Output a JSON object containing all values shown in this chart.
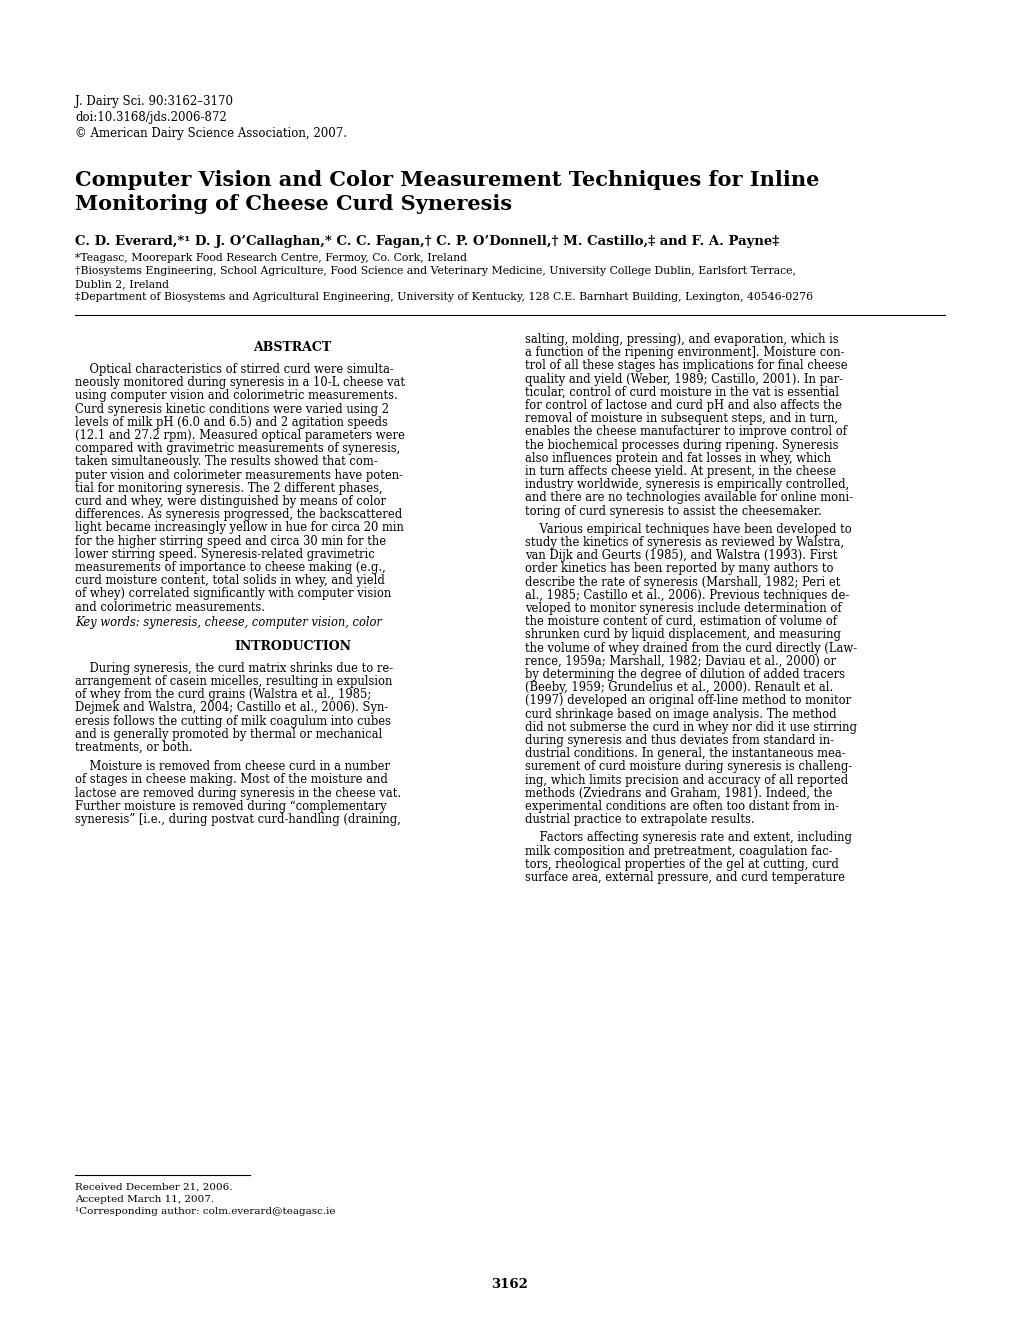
{
  "bg_color": "#ffffff",
  "journal_info": "J. Dairy Sci. 90:3162–3170",
  "doi": "doi:10.3168/jds.2006-872",
  "copyright": "© American Dairy Science Association, 2007.",
  "title_line1": "Computer Vision and Color Measurement Techniques for Inline",
  "title_line2": "Monitoring of Cheese Curd Syneresis",
  "authors": "C. D. Everard,*¹ D. J. O’Callaghan,* C. C. Fagan,† C. P. O’Donnell,† M. Castillo,‡ and F. A. Payne‡",
  "affil1": "*Teagasc, Moorepark Food Research Centre, Fermoy, Co. Cork, Ireland",
  "affil2": "†Biosystems Engineering, School Agriculture, Food Science and Veterinary Medicine, University College Dublin, Earlsfort Terrace,",
  "affil2b": "Dublin 2, Ireland",
  "affil3": "‡Department of Biosystems and Agricultural Engineering, University of Kentucky, 128 C.E. Barnhart Building, Lexington, 40546-0276",
  "abstract_title": "ABSTRACT",
  "keywords": "Key words: syneresis, cheese, computer vision, color",
  "intro_title": "INTRODUCTION",
  "footnote_received": "Received December 21, 2006.",
  "footnote_accepted": "Accepted March 11, 2007.",
  "footnote_corresponding": "¹Corresponding author: colm.everard@teagasc.ie",
  "page_number": "3162",
  "abstract_lines": [
    "    Optical characteristics of stirred curd were simulta-",
    "neously monitored during syneresis in a 10-L cheese vat",
    "using computer vision and colorimetric measurements.",
    "Curd syneresis kinetic conditions were varied using 2",
    "levels of milk pH (6.0 and 6.5) and 2 agitation speeds",
    "(12.1 and 27.2 rpm). Measured optical parameters were",
    "compared with gravimetric measurements of syneresis,",
    "taken simultaneously. The results showed that com-",
    "puter vision and colorimeter measurements have poten-",
    "tial for monitoring syneresis. The 2 different phases,",
    "curd and whey, were distinguished by means of color",
    "differences. As syneresis progressed, the backscattered",
    "light became increasingly yellow in hue for circa 20 min",
    "for the higher stirring speed and circa 30 min for the",
    "lower stirring speed. Syneresis-related gravimetric",
    "measurements of importance to cheese making (e.g.,",
    "curd moisture content, total solids in whey, and yield",
    "of whey) correlated significantly with computer vision",
    "and colorimetric measurements."
  ],
  "intro_p1_lines": [
    "    During syneresis, the curd matrix shrinks due to re-",
    "arrangement of casein micelles, resulting in expulsion",
    "of whey from the curd grains (Walstra et al., 1985;",
    "Dejmek and Walstra, 2004; Castillo et al., 2006). Syn-",
    "eresis follows the cutting of milk coagulum into cubes",
    "and is generally promoted by thermal or mechanical",
    "treatments, or both."
  ],
  "intro_p2_lines": [
    "    Moisture is removed from cheese curd in a number",
    "of stages in cheese making. Most of the moisture and",
    "lactose are removed during syneresis in the cheese vat.",
    "Further moisture is removed during “complementary",
    "syneresis” [i.e., during postvat curd-handling (draining,"
  ],
  "rc1_lines": [
    "salting, molding, pressing), and evaporation, which is",
    "a function of the ripening environment]. Moisture con-",
    "trol of all these stages has implications for final cheese",
    "quality and yield (Weber, 1989; Castillo, 2001). In par-",
    "ticular, control of curd moisture in the vat is essential",
    "for control of lactose and curd pH and also affects the",
    "removal of moisture in subsequent steps, and in turn,",
    "enables the cheese manufacturer to improve control of",
    "the biochemical processes during ripening. Syneresis",
    "also influences protein and fat losses in whey, which",
    "in turn affects cheese yield. At present, in the cheese",
    "industry worldwide, syneresis is empirically controlled,",
    "and there are no technologies available for online moni-",
    "toring of curd syneresis to assist the cheesemaker."
  ],
  "rc2_lines": [
    "    Various empirical techniques have been developed to",
    "study the kinetics of syneresis as reviewed by Walstra,",
    "van Dijk and Geurts (1985), and Walstra (1993). First",
    "order kinetics has been reported by many authors to",
    "describe the rate of syneresis (Marshall, 1982; Peri et",
    "al., 1985; Castillo et al., 2006). Previous techniques de-",
    "veloped to monitor syneresis include determination of",
    "the moisture content of curd, estimation of volume of",
    "shrunken curd by liquid displacement, and measuring",
    "the volume of whey drained from the curd directly (Law-",
    "rence, 1959a; Marshall, 1982; Daviau et al., 2000) or",
    "by determining the degree of dilution of added tracers",
    "(Beeby, 1959; Grundelius et al., 2000). Renault et al.",
    "(1997) developed an original off-line method to monitor",
    "curd shrinkage based on image analysis. The method",
    "did not submerse the curd in whey nor did it use stirring",
    "during syneresis and thus deviates from standard in-",
    "dustrial conditions. In general, the instantaneous mea-",
    "surement of curd moisture during syneresis is challeng-",
    "ing, which limits precision and accuracy of all reported",
    "methods (Zviedrans and Graham, 1981). Indeed, the",
    "experimental conditions are often too distant from in-",
    "dustrial practice to extrapolate results."
  ],
  "rc3_lines": [
    "    Factors affecting syneresis rate and extent, including",
    "milk composition and pretreatment, coagulation fac-",
    "tors, rheological properties of the gel at cutting, curd",
    "surface area, external pressure, and curd temperature"
  ]
}
